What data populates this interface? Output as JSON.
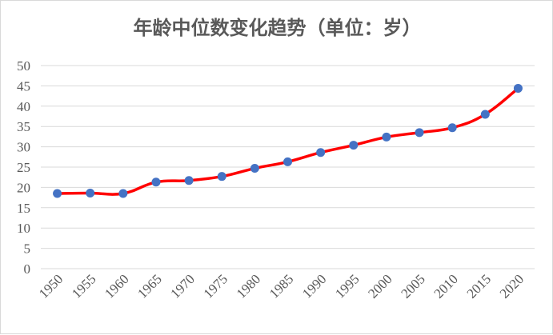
{
  "chart_data": {
    "type": "line",
    "title": "年龄中位数变化趋势（单位：岁）",
    "xlabel": "",
    "ylabel": "",
    "x": [
      "1950",
      "1955",
      "1960",
      "1965",
      "1970",
      "1975",
      "1980",
      "1985",
      "1990",
      "1995",
      "2000",
      "2005",
      "2010",
      "2015",
      "2020"
    ],
    "series": [
      {
        "values": [
          18.5,
          18.6,
          18.5,
          21.3,
          21.7,
          22.7,
          24.7,
          26.3,
          28.6,
          30.4,
          32.4,
          33.5,
          34.7,
          38.0,
          44.4
        ]
      }
    ],
    "ylim": [
      0,
      50
    ],
    "yticks": [
      0,
      5,
      10,
      15,
      20,
      25,
      30,
      35,
      40,
      45,
      50
    ],
    "grid": true,
    "smooth": true,
    "legend": "none",
    "line_color": "#ff0000",
    "marker_color": "#4472c4",
    "grid_color": "#d9d9d9",
    "text_color": "#595959"
  }
}
